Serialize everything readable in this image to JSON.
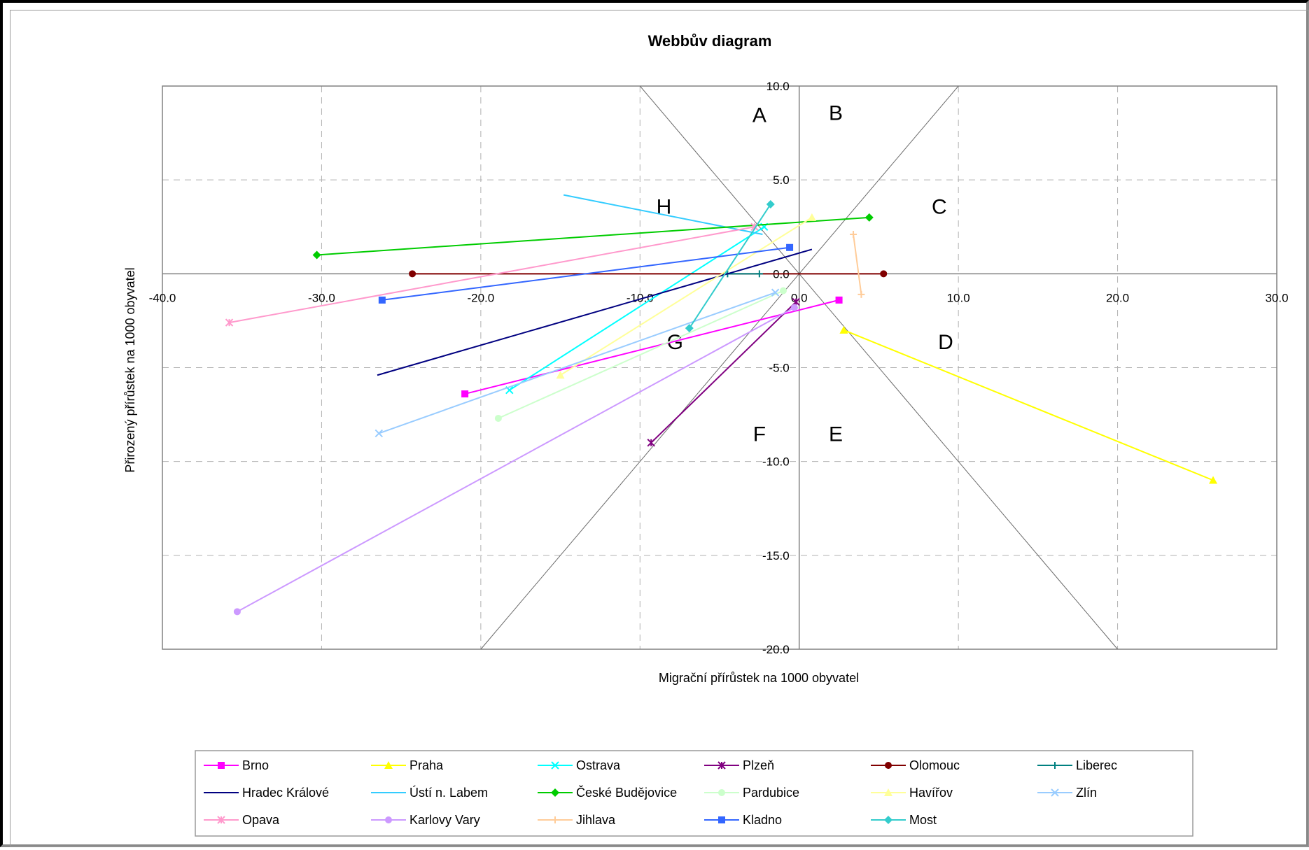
{
  "chart_data": {
    "type": "scatter",
    "title": "Webbův diagram",
    "xlabel": "Migrační přírůstek na 1000 obyvatel",
    "ylabel": "Přirozený přírůstek na 1000 obyvatel",
    "xlim": [
      -40,
      30
    ],
    "ylim": [
      -20,
      10
    ],
    "x_ticks": [
      "-40.0",
      "-30.0",
      "-20.0",
      "-10.0",
      "0.0",
      "10.0",
      "20.0",
      "30.0"
    ],
    "y_ticks": [
      "10.0",
      "5.0",
      "0.0",
      "-5.0",
      "-10.0",
      "-15.0",
      "-20.0"
    ],
    "grid": "dashed vertical and horizontal",
    "legend_position": "bottom",
    "region_labels": [
      {
        "text": "A",
        "x": -2.5,
        "y": 8.5
      },
      {
        "text": "B",
        "x": 2.3,
        "y": 8.6
      },
      {
        "text": "C",
        "x": 8.8,
        "y": 3.6
      },
      {
        "text": "D",
        "x": 9.2,
        "y": -3.6
      },
      {
        "text": "E",
        "x": 2.3,
        "y": -8.5
      },
      {
        "text": "F",
        "x": -2.5,
        "y": -8.5
      },
      {
        "text": "G",
        "x": -7.8,
        "y": -3.6
      },
      {
        "text": "H",
        "x": -8.5,
        "y": 3.6
      }
    ],
    "diagonals": [
      {
        "from": [
          -10,
          10
        ],
        "to": [
          20,
          -20
        ]
      },
      {
        "from": [
          10,
          10
        ],
        "to": [
          -20,
          -20
        ]
      }
    ],
    "series": [
      {
        "name": "Brno",
        "color": "#ff00ff",
        "marker": "square",
        "points": [
          [
            -21,
            -6.4
          ],
          [
            2.5,
            -1.4
          ]
        ]
      },
      {
        "name": "Praha",
        "color": "#ffff00",
        "marker": "triangle",
        "points": [
          [
            2.8,
            -3.0
          ],
          [
            26,
            -11.0
          ]
        ]
      },
      {
        "name": "Ostrava",
        "color": "#00ffff",
        "marker": "x",
        "points": [
          [
            -18.2,
            -6.2
          ],
          [
            -2.2,
            2.5
          ]
        ]
      },
      {
        "name": "Plzeň",
        "color": "#800080",
        "marker": "star",
        "points": [
          [
            -9.3,
            -9.0
          ],
          [
            -0.2,
            -1.5
          ]
        ]
      },
      {
        "name": "Olomouc",
        "color": "#800000",
        "marker": "circle",
        "points": [
          [
            -24.3,
            0.0
          ],
          [
            5.3,
            0.0
          ]
        ]
      },
      {
        "name": "Liberec",
        "color": "#008080",
        "marker": "plus",
        "points": [
          [
            -4.5,
            0.0
          ],
          [
            -2.5,
            0.0
          ]
        ]
      },
      {
        "name": "Hradec Králové",
        "color": "#000080",
        "marker": "none",
        "points": [
          [
            -26.5,
            -5.4
          ],
          [
            0.8,
            1.3
          ]
        ]
      },
      {
        "name": "Ústí n. Labem",
        "color": "#33ccff",
        "marker": "none",
        "points": [
          [
            -14.8,
            4.2
          ],
          [
            -2.3,
            2.1
          ]
        ]
      },
      {
        "name": "České Budějovice",
        "color": "#00cc00",
        "marker": "diamond",
        "points": [
          [
            -30.3,
            1.0
          ],
          [
            4.4,
            3.0
          ]
        ]
      },
      {
        "name": "Pardubice",
        "color": "#ccffcc",
        "marker": "circle",
        "points": [
          [
            -18.9,
            -7.7
          ],
          [
            -1.0,
            -0.9
          ]
        ]
      },
      {
        "name": "Havířov",
        "color": "#ffff99",
        "marker": "triangle",
        "points": [
          [
            -15,
            -5.4
          ],
          [
            0.8,
            3.0
          ]
        ]
      },
      {
        "name": "Zlín",
        "color": "#99ccff",
        "marker": "x",
        "points": [
          [
            -26.4,
            -8.5
          ],
          [
            -1.5,
            -1.0
          ]
        ]
      },
      {
        "name": "Opava",
        "color": "#ff99cc",
        "marker": "star",
        "points": [
          [
            -35.8,
            -2.6
          ],
          [
            -2.8,
            2.5
          ]
        ]
      },
      {
        "name": "Karlovy Vary",
        "color": "#cc99ff",
        "marker": "circle",
        "points": [
          [
            -35.3,
            -18.0
          ],
          [
            -0.3,
            -1.8
          ]
        ]
      },
      {
        "name": "Jihlava",
        "color": "#ffcc99",
        "marker": "plus",
        "points": [
          [
            3.4,
            2.1
          ],
          [
            3.9,
            -1.1
          ]
        ]
      },
      {
        "name": "Kladno",
        "color": "#3366ff",
        "marker": "square",
        "points": [
          [
            -26.2,
            -1.4
          ],
          [
            -0.6,
            1.4
          ]
        ]
      },
      {
        "name": "Most",
        "color": "#33cccc",
        "marker": "diamond",
        "points": [
          [
            -6.9,
            -2.9
          ],
          [
            -1.8,
            3.7
          ]
        ]
      }
    ]
  }
}
